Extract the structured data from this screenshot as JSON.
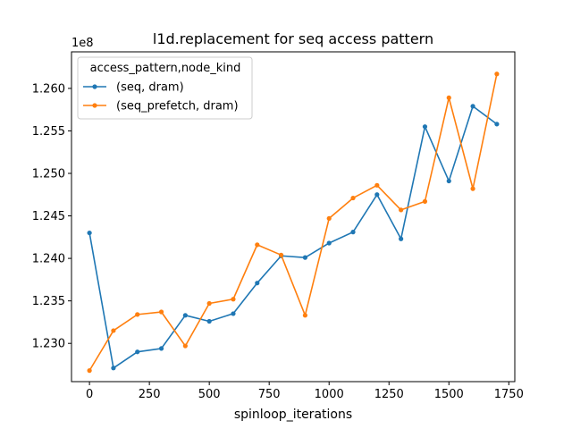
{
  "chart_data": {
    "type": "line",
    "title": "l1d.replacement for seq access pattern",
    "xlabel": "spinloop_iterations",
    "ylabel": "",
    "y_offset_label": "1e8",
    "xlim": [
      -75,
      1775
    ],
    "ylim": [
      1.2255,
      1.2643
    ],
    "x_ticks": [
      0,
      250,
      500,
      750,
      1000,
      1250,
      1500,
      1750
    ],
    "x_tick_labels": [
      "0",
      "250",
      "500",
      "750",
      "1000",
      "1250",
      "1500",
      "1750"
    ],
    "y_ticks": [
      1.23,
      1.235,
      1.24,
      1.245,
      1.25,
      1.255,
      1.26
    ],
    "y_tick_labels": [
      "1.230",
      "1.235",
      "1.240",
      "1.245",
      "1.250",
      "1.255",
      "1.260"
    ],
    "grid": false,
    "legend": {
      "title": "access_pattern,node_kind",
      "position": "top-left"
    },
    "x": [
      0,
      100,
      200,
      300,
      400,
      500,
      600,
      700,
      800,
      900,
      1000,
      1100,
      1200,
      1300,
      1400,
      1500,
      1600,
      1700
    ],
    "series": [
      {
        "name": "(seq, dram)",
        "color": "#1f77b4",
        "values": [
          1.243,
          1.2271,
          1.229,
          1.2294,
          1.2333,
          1.2326,
          1.2335,
          1.2371,
          1.2403,
          1.2401,
          1.2418,
          1.2431,
          1.2475,
          1.2423,
          1.2555,
          1.2491,
          1.2579,
          1.2558
        ]
      },
      {
        "name": "(seq_prefetch, dram)",
        "color": "#ff7f0e",
        "values": [
          1.2268,
          1.2315,
          1.2334,
          1.2337,
          1.2297,
          1.2347,
          1.2352,
          1.2416,
          1.2404,
          1.2333,
          1.2447,
          1.2471,
          1.2486,
          1.2457,
          1.2467,
          1.2589,
          1.2482,
          1.2617
        ]
      }
    ]
  }
}
